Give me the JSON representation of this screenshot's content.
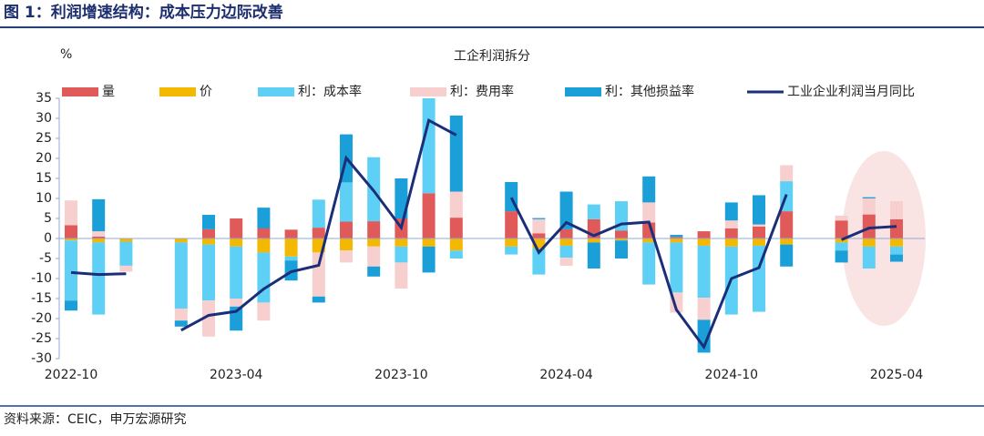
{
  "page_title": "图 1：利润增速结构：成本压力边际改善",
  "source": "资料来源：CEIC，申万宏源研究",
  "chart_data": {
    "type": "bar",
    "stacked": true,
    "title": "工企利润拆分",
    "y_label": "%",
    "categories": [
      "2022-10",
      null,
      null,
      null,
      null,
      null,
      "2023-04",
      null,
      null,
      null,
      null,
      null,
      "2023-10",
      null,
      null,
      null,
      null,
      null,
      "2024-04",
      null,
      null,
      null,
      null,
      null,
      "2024-10",
      null,
      null,
      null,
      null,
      null,
      "2025-04"
    ],
    "ylim": [
      -30,
      35
    ],
    "yticks": [
      35,
      30,
      25,
      20,
      15,
      10,
      5,
      0,
      -5,
      -10,
      -15,
      -20,
      -25,
      -30
    ],
    "grid": false,
    "legend": "top",
    "series": [
      {
        "name": "量",
        "color": "#e05a5a",
        "values": [
          3.3,
          0.5,
          0,
          null,
          0,
          2.3,
          5,
          2.5,
          2.2,
          2.7,
          4.2,
          4.3,
          5,
          11.3,
          5.2,
          null,
          6.8,
          1.3,
          2.3,
          4.8,
          2,
          4,
          0.4,
          1.8,
          2.5,
          3,
          6.8,
          null,
          4.5,
          6,
          4.8
        ]
      },
      {
        "name": "价",
        "color": "#f5b800",
        "values": [
          -0.5,
          -1,
          -0.8,
          null,
          -1,
          -1.5,
          -2,
          -3.5,
          -4.5,
          -3.5,
          -3,
          -2,
          -2,
          -2,
          -3,
          null,
          -2,
          -2.5,
          -1.8,
          -1,
          -0.5,
          -1,
          -1,
          -1.8,
          -2,
          -1.8,
          -1.5,
          null,
          -1,
          -2,
          -2
        ]
      },
      {
        "name": "利：成本率",
        "color": "#5fd0f5",
        "values": [
          -15,
          -18,
          -6,
          null,
          -16.5,
          -14,
          -13,
          -12.5,
          -1,
          7,
          9.8,
          16,
          -4,
          23.7,
          -2,
          null,
          -2,
          -6.5,
          -3,
          3.7,
          7.3,
          -10.5,
          -12.5,
          -13,
          -17,
          -16.5,
          7.5,
          null,
          -2,
          -5.5,
          -2
        ]
      },
      {
        "name": "利：费用率",
        "color": "#f8cfcf",
        "values": [
          6.2,
          1.3,
          -1.5,
          null,
          -3,
          -9,
          -2,
          -4.5,
          0,
          -11,
          -3,
          -5,
          -6.5,
          0,
          6.5,
          null,
          0,
          3.5,
          -2,
          0,
          0,
          5,
          -5,
          -5.5,
          2,
          0.5,
          4,
          null,
          1.2,
          4,
          4.5
        ]
      },
      {
        "name": "利：其他损益率",
        "color": "#1a9fd9",
        "values": [
          -2.5,
          8,
          0,
          null,
          -1.5,
          3.6,
          -6,
          5.2,
          -5,
          -1.5,
          12,
          -2.5,
          10,
          -6.5,
          19,
          null,
          7.3,
          0.3,
          9.4,
          -6.5,
          -4.5,
          6.5,
          0.5,
          -8.2,
          4.5,
          7.3,
          -5.5,
          null,
          -3,
          0.3,
          -1.8
        ]
      },
      {
        "name": "工业企业利润当月同比",
        "kind": "line",
        "color": "#1a2e7a",
        "values": [
          -8.5,
          -9.0,
          -8.8,
          null,
          -22.9,
          -19.2,
          -18.2,
          -12.6,
          -8.3,
          -6.7,
          20.1,
          11.9,
          2.7,
          29.5,
          25.8,
          null,
          10.2,
          -3.5,
          4.0,
          0.7,
          3.6,
          4.1,
          -17.8,
          -27.1,
          -10.0,
          -7.3,
          11.0,
          null,
          -0.3,
          2.6,
          3.0
        ]
      }
    ]
  }
}
